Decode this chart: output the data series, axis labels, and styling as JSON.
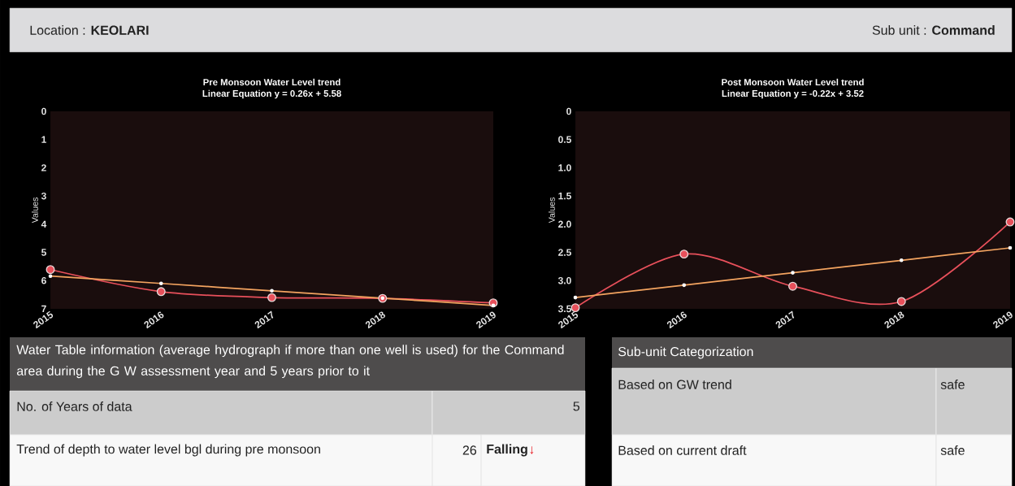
{
  "chart_data": [
    {
      "type": "other",
      "annotations": [
        "Location : **KEOLARI**",
        "Sub unit : **Command**"
      ]
    },
    {
      "type": "line",
      "title": "Pre Monsoon Water Level trend",
      "subtitle": "Linear Equation y = 0.26x + 5.58",
      "ylabel": "Values",
      "categories": [
        "2015",
        "2016",
        "2017",
        "2018",
        "2019"
      ],
      "series": [
        {
          "color": "#e8505b",
          "marker": "circle",
          "values": [
            5.61,
            6.39,
            6.6,
            6.63,
            6.79
          ]
        },
        {
          "color": "#f4a460",
          "marker": "circle",
          "values": [
            5.84,
            6.1,
            6.36,
            6.62,
            6.88
          ]
        }
      ],
      "ylim": [
        7,
        0
      ],
      "yticks": [
        0,
        1,
        2,
        3,
        4,
        5,
        6,
        7
      ],
      "grid": false
    },
    {
      "type": "line",
      "title": "Post Monsoon Water Level trend",
      "subtitle": "Linear Equation y = -0.22x + 3.52",
      "ylabel": "Values",
      "categories": [
        "2015",
        "2016",
        "2017",
        "2018",
        "2019"
      ],
      "series": [
        {
          "color": "#e8505b",
          "marker": "circle",
          "values": [
            3.48,
            2.53,
            3.1,
            3.37,
            1.96
          ]
        },
        {
          "color": "#f4a460",
          "marker": "circle",
          "values": [
            3.3,
            3.08,
            2.86,
            2.64,
            2.42
          ]
        }
      ],
      "ylim": [
        3.5,
        0
      ],
      "yticks": [
        0,
        0.5,
        {
          "value": 1,
          "label": "1.0"
        },
        1.5,
        {
          "value": 2,
          "label": "2.0"
        },
        2.5,
        {
          "value": 3,
          "label": "3.0"
        },
        3.5
      ],
      "grid": false
    },
    {
      "type": "other",
      "title": "Water Table information (average hydrograph if more than one well is used) for the Command area during the G W assessment year and 5 years prior to it",
      "annotations": [
        "No. of Years of data",
        "5",
        "Trend of depth to water level bgl during pre monsoon",
        "26",
        "**Falling**",
        "↓"
      ]
    },
    {
      "type": "other",
      "title": "Sub-unit Categorization",
      "annotations": [
        "Based on GW trend",
        "safe",
        "Based on current draft",
        "safe"
      ]
    }
  ]
}
